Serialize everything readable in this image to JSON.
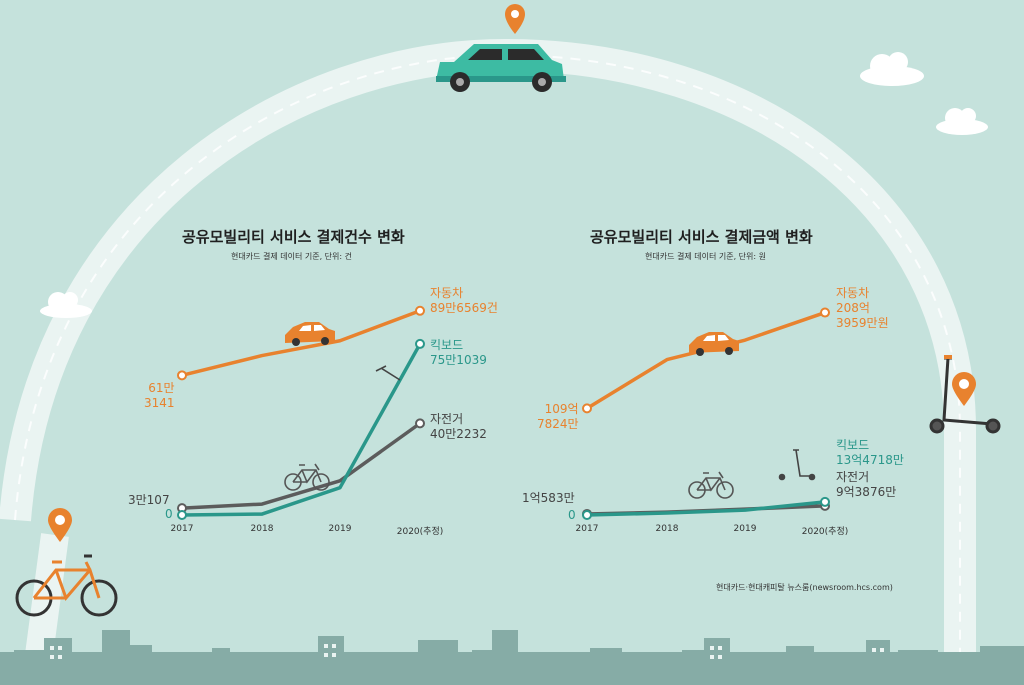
{
  "colors": {
    "car": "#e8822e",
    "kickboard": "#2a978a",
    "bicycle": "#5c5c5c",
    "background": "#c5e2dc",
    "arc": "#eaf4f2",
    "city": "#86aca6"
  },
  "icons": [
    "car-icon",
    "location-pin-icon",
    "cloud-icon",
    "bicycle-icon",
    "kickboard-icon",
    "city-skyline"
  ],
  "source": "현대카드·현대캐피탈 뉴스룸(newsroom.hcs.com)",
  "chart_data": [
    {
      "type": "line",
      "title": "공유모빌리티 서비스 결제건수 변화",
      "subtitle": "현대카드 결제 데이터 기준, 단위: 건",
      "x": [
        "2017",
        "2018",
        "2019",
        "2020(추정)"
      ],
      "ylim": [
        0,
        900000
      ],
      "series": [
        {
          "name": "자동차",
          "values": [
            613141,
            700000,
            765000,
            896569
          ],
          "start_label": "61만\n3141",
          "end_label": "자동차\n89만6569건"
        },
        {
          "name": "킥보드",
          "values": [
            0,
            4000,
            120000,
            751039
          ],
          "start_label": "0",
          "end_label": "킥보드\n75만1039"
        },
        {
          "name": "자전거",
          "values": [
            30107,
            48000,
            150000,
            402232
          ],
          "start_label": "3만107",
          "end_label": "자전거\n40만2232"
        }
      ]
    },
    {
      "type": "line",
      "title": "공유모빌리티 서비스 결제금액 변화",
      "subtitle": "현대카드 결제 데이터 기준, 단위: 원",
      "x": [
        "2017",
        "2018",
        "2019",
        "2020(추정)"
      ],
      "ylim": [
        0,
        21000000000
      ],
      "series": [
        {
          "name": "자동차",
          "values": [
            10978240000,
            16000000000,
            18000000000,
            20839590000
          ],
          "start_label": "109억\n7824만",
          "end_label": "자동차\n208억\n3959만원"
        },
        {
          "name": "킥보드",
          "values": [
            0,
            200000000,
            500000000,
            1347180000
          ],
          "start_label": "0",
          "end_label": "킥보드\n13억4718만"
        },
        {
          "name": "자전거",
          "values": [
            105830000,
            300000000,
            600000000,
            938760000
          ],
          "start_label": "1억583만",
          "end_label": "자전거\n9억3876만"
        }
      ]
    }
  ]
}
